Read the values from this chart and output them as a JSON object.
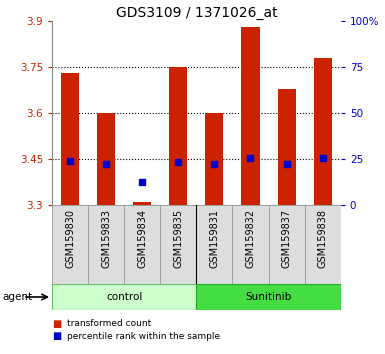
{
  "title": "GDS3109 / 1371026_at",
  "samples": [
    "GSM159830",
    "GSM159833",
    "GSM159834",
    "GSM159835",
    "GSM159831",
    "GSM159832",
    "GSM159837",
    "GSM159838"
  ],
  "red_values": [
    3.73,
    3.6,
    3.31,
    3.75,
    3.6,
    3.88,
    3.68,
    3.78
  ],
  "blue_values": [
    3.445,
    3.435,
    3.375,
    3.44,
    3.435,
    3.455,
    3.435,
    3.455
  ],
  "bar_bottom": 3.3,
  "ylim_min": 3.3,
  "ylim_max": 3.9,
  "yticks_left": [
    3.3,
    3.45,
    3.6,
    3.75,
    3.9
  ],
  "yticks_right": [
    0,
    25,
    50,
    75,
    100
  ],
  "yticks_right_labels": [
    "0",
    "25",
    "50",
    "75",
    "100%"
  ],
  "grid_lines": [
    3.45,
    3.6,
    3.75
  ],
  "groups": [
    {
      "label": "control",
      "indices": [
        0,
        1,
        2,
        3
      ],
      "color": "#ccffcc",
      "border": "#66bb66"
    },
    {
      "label": "Sunitinib",
      "indices": [
        4,
        5,
        6,
        7
      ],
      "color": "#44dd44",
      "border": "#22aa22"
    }
  ],
  "agent_label": "agent",
  "bar_color": "#cc2200",
  "blue_color": "#0000cc",
  "bar_width": 0.5,
  "legend_red": "transformed count",
  "legend_blue": "percentile rank within the sample",
  "title_fontsize": 10,
  "tick_fontsize": 7.5,
  "label_fontsize": 7.5,
  "left_tick_color": "#cc2200",
  "right_tick_color": "#0000cc",
  "bg_color": "#dddddd",
  "sample_fontsize": 7
}
